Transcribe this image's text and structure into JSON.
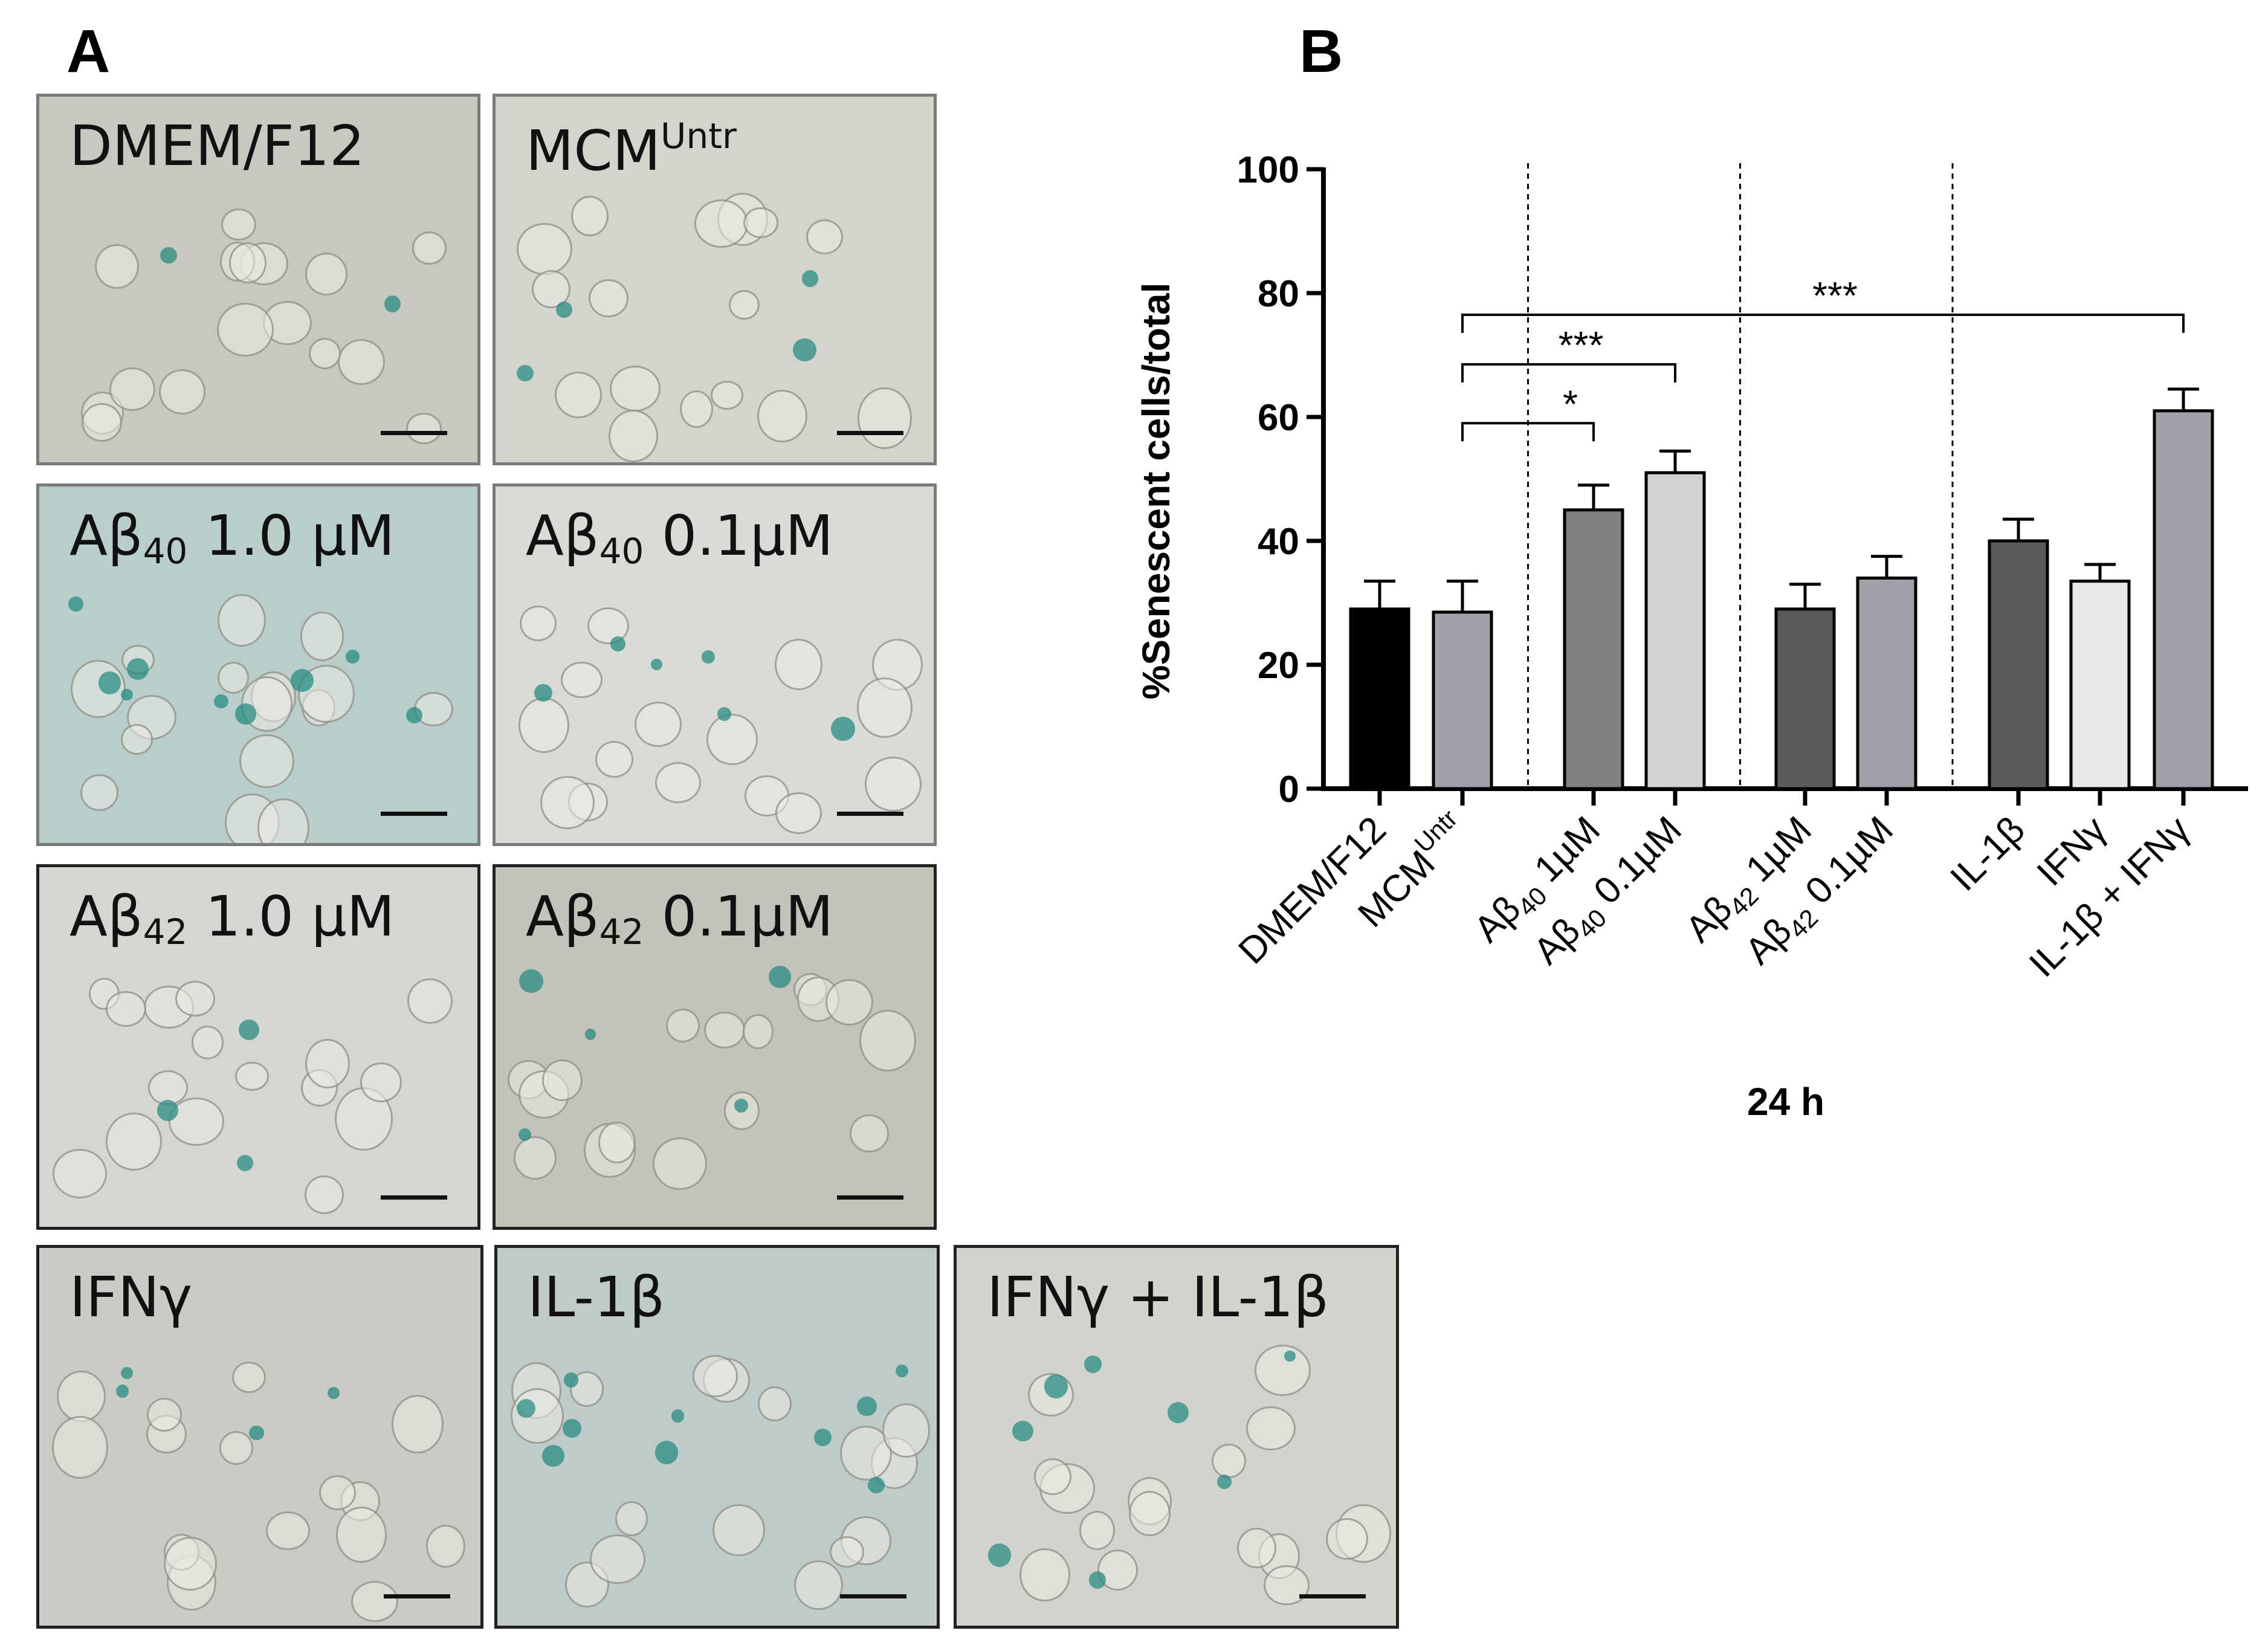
{
  "panel_a": {
    "letter": "A",
    "images": [
      {
        "label_main": "DMEM/F12",
        "tone": "#c9c8c0",
        "border": "#7a7a7a",
        "stain": 2
      },
      {
        "label_main": "MCM",
        "label_sup": "Untr",
        "tone": "#d4d4cd",
        "border": "#7a7a7a",
        "stain": 4
      },
      {
        "label_main": "Aβ",
        "label_sub": "40",
        "label_tail": " 1.0 µM",
        "tone": "#b9cdca",
        "border": "#7a7a7a",
        "stain": 9
      },
      {
        "label_main": "Aβ",
        "label_sub": "40",
        "label_tail": " 0.1µM",
        "tone": "#d8dbd6",
        "border": "#7a7a7a",
        "stain": 6
      },
      {
        "label_main": "Aβ",
        "label_sub": "42",
        "label_tail": " 1.0 µM",
        "tone": "#d4d6d1",
        "border": "#222222",
        "stain": 3
      },
      {
        "label_main": "Aβ",
        "label_sub": "42",
        "label_tail": " 0.1µM",
        "tone": "#c4c3ba",
        "border": "#222222",
        "stain": 5
      },
      {
        "label_main": "IFNγ",
        "tone": "#c9cbc4",
        "border": "#222222",
        "stain": 4
      },
      {
        "label_main": "IL-1β",
        "tone": "#bfcbc8",
        "border": "#222222",
        "stain": 10
      },
      {
        "label_main": "IFNγ + IL-1β",
        "tone": "#d3d3cd",
        "border": "#222222",
        "stain": 8
      }
    ]
  },
  "panel_b": {
    "letter": "B",
    "xlabel": "24 h",
    "ylabel": "%Senescent cells/total"
  },
  "chart_data": {
    "type": "bar",
    "categories": [
      {
        "main": "DMEM/F12"
      },
      {
        "main": "MCM",
        "sup": "Untr"
      },
      {
        "main": "Aβ",
        "sub": "40",
        "tail": " 1µM"
      },
      {
        "main": "Aβ",
        "sub": "40",
        "tail": " 0.1µM"
      },
      {
        "main": "Aβ",
        "sub": "42",
        "tail": " 1µM"
      },
      {
        "main": "Aβ",
        "sub": "42",
        "tail": " 0.1µM"
      },
      {
        "main": "IL-1β"
      },
      {
        "main": "IFNγ"
      },
      {
        "main": "IL-1β + IFNγ"
      }
    ],
    "values": [
      29.0,
      28.5,
      45.0,
      51.0,
      29.0,
      34.0,
      40.0,
      33.5,
      61.0
    ],
    "errors": [
      4.5,
      5.0,
      4.0,
      3.5,
      4.0,
      3.5,
      3.5,
      2.7,
      3.5
    ],
    "colors": [
      "#000000",
      "#a0a0a8",
      "#808080",
      "#d2d2d2",
      "#5a5a5a",
      "#a0a0a8",
      "#5a5a5a",
      "#e8e8e8",
      "#a0a0a8"
    ],
    "ylim": [
      0,
      100
    ],
    "yticks": [
      0,
      20,
      40,
      60,
      80,
      100
    ],
    "group_separators_after": [
      1,
      3,
      5
    ],
    "significance": [
      {
        "from": 1,
        "to": 2,
        "y": 59,
        "label": "*"
      },
      {
        "from": 1,
        "to": 3,
        "y": 68.5,
        "label": "***"
      },
      {
        "from": 1,
        "to": 8,
        "y": 76.5,
        "label": "***"
      }
    ]
  }
}
